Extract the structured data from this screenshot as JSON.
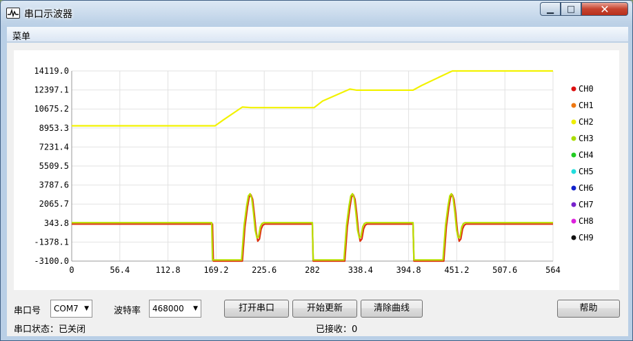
{
  "window": {
    "title": "串口示波器"
  },
  "menu": {
    "items": [
      "菜单"
    ]
  },
  "chart_data": {
    "type": "line",
    "x_ticks": [
      "0",
      "56.4",
      "112.8",
      "169.2",
      "225.6",
      "282",
      "338.4",
      "394.8",
      "451.2",
      "507.6",
      "564"
    ],
    "y_ticks": [
      "14119.0",
      "12397.1",
      "10675.2",
      "8953.3",
      "7231.4",
      "5509.5",
      "3787.6",
      "2065.7",
      "343.8",
      "-1378.1",
      "-3100.0"
    ],
    "xlim": [
      0,
      564
    ],
    "ylim": [
      -3100.0,
      14119.0
    ],
    "grid": true,
    "legend_position": "right",
    "legend": [
      {
        "name": "CH0",
        "color": "#dd1111"
      },
      {
        "name": "CH1",
        "color": "#ee7711"
      },
      {
        "name": "CH2",
        "color": "#eeee00"
      },
      {
        "name": "CH3",
        "color": "#aadd00"
      },
      {
        "name": "CH4",
        "color": "#22cc22"
      },
      {
        "name": "CH5",
        "color": "#22dddd"
      },
      {
        "name": "CH6",
        "color": "#1122cc"
      },
      {
        "name": "CH7",
        "color": "#7722cc"
      },
      {
        "name": "CH8",
        "color": "#dd22dd"
      },
      {
        "name": "CH9",
        "color": "#111111"
      }
    ],
    "series": [
      {
        "name": "CH2",
        "color": "#f2f200",
        "points": [
          [
            0,
            9150
          ],
          [
            168,
            9150
          ],
          [
            178,
            9700
          ],
          [
            200,
            10850
          ],
          [
            210,
            10800
          ],
          [
            284,
            10800
          ],
          [
            294,
            11400
          ],
          [
            326,
            12480
          ],
          [
            334,
            12380
          ],
          [
            400,
            12380
          ],
          [
            410,
            12800
          ],
          [
            440,
            13900
          ],
          [
            446,
            14119
          ],
          [
            564,
            14119
          ]
        ]
      },
      {
        "name": "CH0",
        "color": "#dd3311",
        "points": [
          [
            0,
            250
          ],
          [
            165,
            250
          ],
          [
            166,
            -3100
          ],
          [
            200,
            -3100
          ],
          [
            203,
            0
          ],
          [
            206,
            1800
          ],
          [
            208,
            2700
          ],
          [
            210,
            2900
          ],
          [
            212,
            2500
          ],
          [
            214,
            1200
          ],
          [
            216,
            -400
          ],
          [
            218,
            -1300
          ],
          [
            220,
            -1100
          ],
          [
            222,
            -200
          ],
          [
            224,
            150
          ],
          [
            226,
            250
          ],
          [
            282,
            250
          ],
          [
            283,
            -3100
          ],
          [
            320,
            -3100
          ],
          [
            323,
            0
          ],
          [
            326,
            1800
          ],
          [
            328,
            2700
          ],
          [
            330,
            2900
          ],
          [
            332,
            2500
          ],
          [
            334,
            1200
          ],
          [
            336,
            -400
          ],
          [
            338,
            -1300
          ],
          [
            340,
            -1100
          ],
          [
            342,
            -200
          ],
          [
            344,
            150
          ],
          [
            346,
            250
          ],
          [
            400,
            250
          ],
          [
            401,
            -3100
          ],
          [
            436,
            -3100
          ],
          [
            439,
            0
          ],
          [
            442,
            1800
          ],
          [
            444,
            2700
          ],
          [
            446,
            2900
          ],
          [
            448,
            2500
          ],
          [
            450,
            1200
          ],
          [
            452,
            -400
          ],
          [
            454,
            -1300
          ],
          [
            456,
            -1100
          ],
          [
            458,
            -200
          ],
          [
            460,
            150
          ],
          [
            462,
            250
          ],
          [
            564,
            250
          ]
        ]
      },
      {
        "name": "CH3",
        "color": "#b8e000",
        "points": [
          [
            0,
            380
          ],
          [
            164,
            380
          ],
          [
            165,
            -3000
          ],
          [
            199,
            -3000
          ],
          [
            202,
            100
          ],
          [
            205,
            1900
          ],
          [
            207,
            2800
          ],
          [
            209,
            3000
          ],
          [
            211,
            2600
          ],
          [
            213,
            1300
          ],
          [
            215,
            -300
          ],
          [
            217,
            -1000
          ],
          [
            219,
            -900
          ],
          [
            221,
            0
          ],
          [
            223,
            300
          ],
          [
            225,
            380
          ],
          [
            282,
            380
          ],
          [
            283,
            -3000
          ],
          [
            319,
            -3000
          ],
          [
            322,
            100
          ],
          [
            325,
            1900
          ],
          [
            327,
            2800
          ],
          [
            329,
            3000
          ],
          [
            331,
            2600
          ],
          [
            333,
            1300
          ],
          [
            335,
            -300
          ],
          [
            337,
            -1000
          ],
          [
            339,
            -900
          ],
          [
            341,
            0
          ],
          [
            343,
            300
          ],
          [
            345,
            380
          ],
          [
            400,
            380
          ],
          [
            401,
            -3000
          ],
          [
            435,
            -3000
          ],
          [
            438,
            100
          ],
          [
            441,
            1900
          ],
          [
            443,
            2800
          ],
          [
            445,
            3000
          ],
          [
            447,
            2600
          ],
          [
            449,
            1300
          ],
          [
            451,
            -300
          ],
          [
            453,
            -1000
          ],
          [
            455,
            -900
          ],
          [
            457,
            0
          ],
          [
            459,
            300
          ],
          [
            461,
            380
          ],
          [
            564,
            380
          ]
        ]
      }
    ]
  },
  "controls": {
    "port_label": "串口号",
    "port_value": "COM7",
    "baud_label": "波特率",
    "baud_value": "468000",
    "open_button": "打开串口",
    "start_button": "开始更新",
    "clear_button": "清除曲线",
    "help_button": "帮助"
  },
  "status": {
    "port_status": "串口状态：已关闭",
    "received": "已接收：0"
  }
}
